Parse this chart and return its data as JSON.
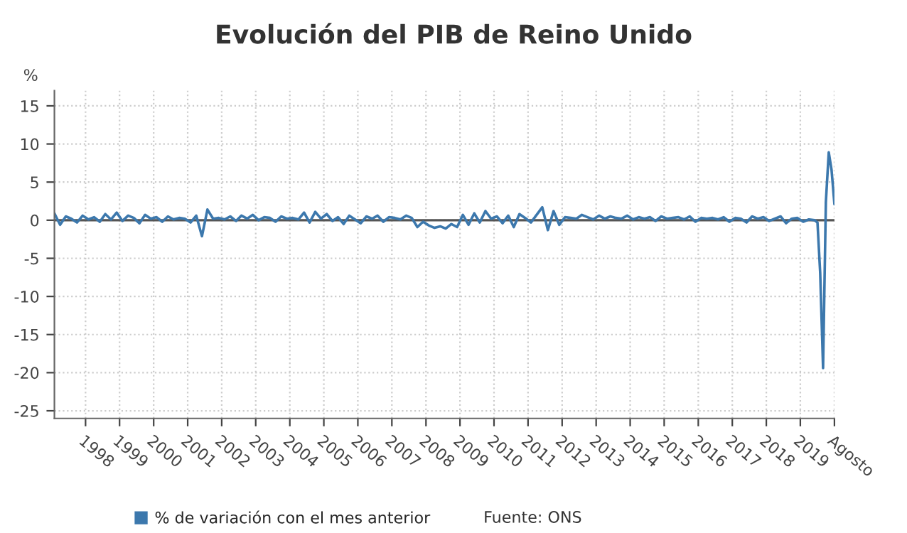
{
  "chart_data": {
    "type": "line",
    "title": "Evolución del PIB de Reino Unido",
    "ylabel": "%",
    "x": [
      "1997-09",
      "1997-11",
      "1998-01",
      "1998-03",
      "1998-05",
      "1998-07",
      "1998-09",
      "1998-11",
      "1999-01",
      "1999-03",
      "1999-05",
      "1999-07",
      "1999-09",
      "1999-11",
      "2000-01",
      "2000-03",
      "2000-05",
      "2000-07",
      "2000-09",
      "2000-11",
      "2001-01",
      "2001-03",
      "2001-05",
      "2001-07",
      "2001-09",
      "2001-11",
      "2002-01",
      "2002-03",
      "2002-05",
      "2002-07",
      "2002-09",
      "2002-11",
      "2003-01",
      "2003-03",
      "2003-05",
      "2003-07",
      "2003-09",
      "2003-11",
      "2004-01",
      "2004-03",
      "2004-05",
      "2004-07",
      "2004-09",
      "2004-11",
      "2005-01",
      "2005-03",
      "2005-05",
      "2005-07",
      "2005-09",
      "2005-11",
      "2006-01",
      "2006-03",
      "2006-05",
      "2006-07",
      "2006-09",
      "2006-11",
      "2007-01",
      "2007-03",
      "2007-05",
      "2007-07",
      "2007-09",
      "2007-11",
      "2008-01",
      "2008-03",
      "2008-05",
      "2008-07",
      "2008-09",
      "2008-11",
      "2009-01",
      "2009-03",
      "2009-05",
      "2009-07",
      "2009-09",
      "2009-11",
      "2010-01",
      "2010-03",
      "2010-05",
      "2010-07",
      "2010-09",
      "2010-11",
      "2011-01",
      "2011-03",
      "2011-05",
      "2011-07",
      "2011-09",
      "2011-11",
      "2012-01",
      "2012-03",
      "2012-05",
      "2012-07",
      "2012-09",
      "2012-11",
      "2013-01",
      "2013-03",
      "2013-05",
      "2013-07",
      "2013-09",
      "2013-11",
      "2014-01",
      "2014-03",
      "2014-05",
      "2014-07",
      "2014-09",
      "2014-11",
      "2015-01",
      "2015-03",
      "2015-05",
      "2015-07",
      "2015-09",
      "2015-11",
      "2016-01",
      "2016-03",
      "2016-05",
      "2016-07",
      "2016-09",
      "2016-11",
      "2017-01",
      "2017-03",
      "2017-05",
      "2017-07",
      "2017-09",
      "2017-11",
      "2018-01",
      "2018-03",
      "2018-05",
      "2018-07",
      "2018-09",
      "2018-11",
      "2019-01",
      "2019-03",
      "2019-05",
      "2019-07",
      "2019-09",
      "2019-11",
      "2020-01",
      "2020-02",
      "2020-03",
      "2020-04",
      "2020-05",
      "2020-06",
      "2020-07",
      "2020-08"
    ],
    "series": [
      {
        "name": "% de variación con el mes anterior",
        "color": "#3c78ad",
        "values": [
          0.9,
          -0.6,
          0.5,
          0.2,
          -0.3,
          0.6,
          0.1,
          0.4,
          -0.2,
          0.8,
          0.1,
          1.0,
          -0.1,
          0.6,
          0.3,
          -0.4,
          0.7,
          0.2,
          0.4,
          -0.2,
          0.5,
          0.1,
          0.3,
          0.2,
          -0.3,
          0.6,
          -2.1,
          1.4,
          0.2,
          0.3,
          0.1,
          0.5,
          -0.1,
          0.6,
          0.2,
          0.7,
          0.0,
          0.4,
          0.3,
          -0.2,
          0.5,
          0.2,
          0.3,
          0.1,
          1.0,
          -0.3,
          1.1,
          0.2,
          0.8,
          -0.1,
          0.4,
          -0.5,
          0.6,
          0.1,
          -0.4,
          0.5,
          0.2,
          0.6,
          -0.2,
          0.4,
          0.3,
          0.1,
          0.6,
          0.3,
          -0.9,
          -0.2,
          -0.7,
          -1.0,
          -0.8,
          -1.1,
          -0.5,
          -0.9,
          0.7,
          -0.6,
          0.9,
          -0.3,
          1.2,
          0.2,
          0.5,
          -0.4,
          0.6,
          -0.9,
          0.8,
          0.3,
          -0.3,
          0.7,
          1.7,
          -1.3,
          1.2,
          -0.6,
          0.4,
          0.3,
          0.2,
          0.7,
          0.4,
          0.1,
          0.6,
          0.2,
          0.5,
          0.3,
          0.2,
          0.6,
          0.1,
          0.4,
          0.2,
          0.4,
          -0.1,
          0.5,
          0.2,
          0.3,
          0.4,
          0.1,
          0.5,
          -0.2,
          0.3,
          0.2,
          0.3,
          0.1,
          0.4,
          -0.2,
          0.3,
          0.2,
          -0.3,
          0.5,
          0.2,
          0.4,
          -0.1,
          0.2,
          0.5,
          -0.4,
          0.2,
          0.3,
          -0.2,
          0.1,
          0.0,
          -0.3,
          -6.9,
          -19.4,
          2.4,
          8.9,
          6.6,
          2.1
        ]
      }
    ],
    "xlim": [
      "1997-09",
      "2020-08"
    ],
    "xticks": [
      {
        "value": "1998-08",
        "label": "1998"
      },
      {
        "value": "1999-08",
        "label": "1999"
      },
      {
        "value": "2000-08",
        "label": "2000"
      },
      {
        "value": "2001-08",
        "label": "2001"
      },
      {
        "value": "2002-08",
        "label": "2002"
      },
      {
        "value": "2003-08",
        "label": "2003"
      },
      {
        "value": "2004-08",
        "label": "2004"
      },
      {
        "value": "2005-08",
        "label": "2005"
      },
      {
        "value": "2006-08",
        "label": "2006"
      },
      {
        "value": "2007-08",
        "label": "2007"
      },
      {
        "value": "2008-08",
        "label": "2008"
      },
      {
        "value": "2009-08",
        "label": "2009"
      },
      {
        "value": "2010-08",
        "label": "2010"
      },
      {
        "value": "2011-08",
        "label": "2011"
      },
      {
        "value": "2012-08",
        "label": "2012"
      },
      {
        "value": "2013-08",
        "label": "2013"
      },
      {
        "value": "2014-08",
        "label": "2014"
      },
      {
        "value": "2015-08",
        "label": "2015"
      },
      {
        "value": "2016-08",
        "label": "2016"
      },
      {
        "value": "2017-08",
        "label": "2017"
      },
      {
        "value": "2018-08",
        "label": "2018"
      },
      {
        "value": "2019-08",
        "label": "2019"
      },
      {
        "value": "2020-08",
        "label": "Agosto"
      }
    ],
    "ylim": [
      -26,
      17
    ],
    "yticks": [
      -25,
      -20,
      -15,
      -10,
      -5,
      0,
      5,
      10,
      15
    ],
    "ref_lines": [
      {
        "axis": "y",
        "value": 0,
        "color": "#555555"
      }
    ],
    "grid": true,
    "legend": "bottom",
    "marker": "none",
    "line_style": "solid",
    "annotations": [
      "Fuente: ONS"
    ]
  }
}
